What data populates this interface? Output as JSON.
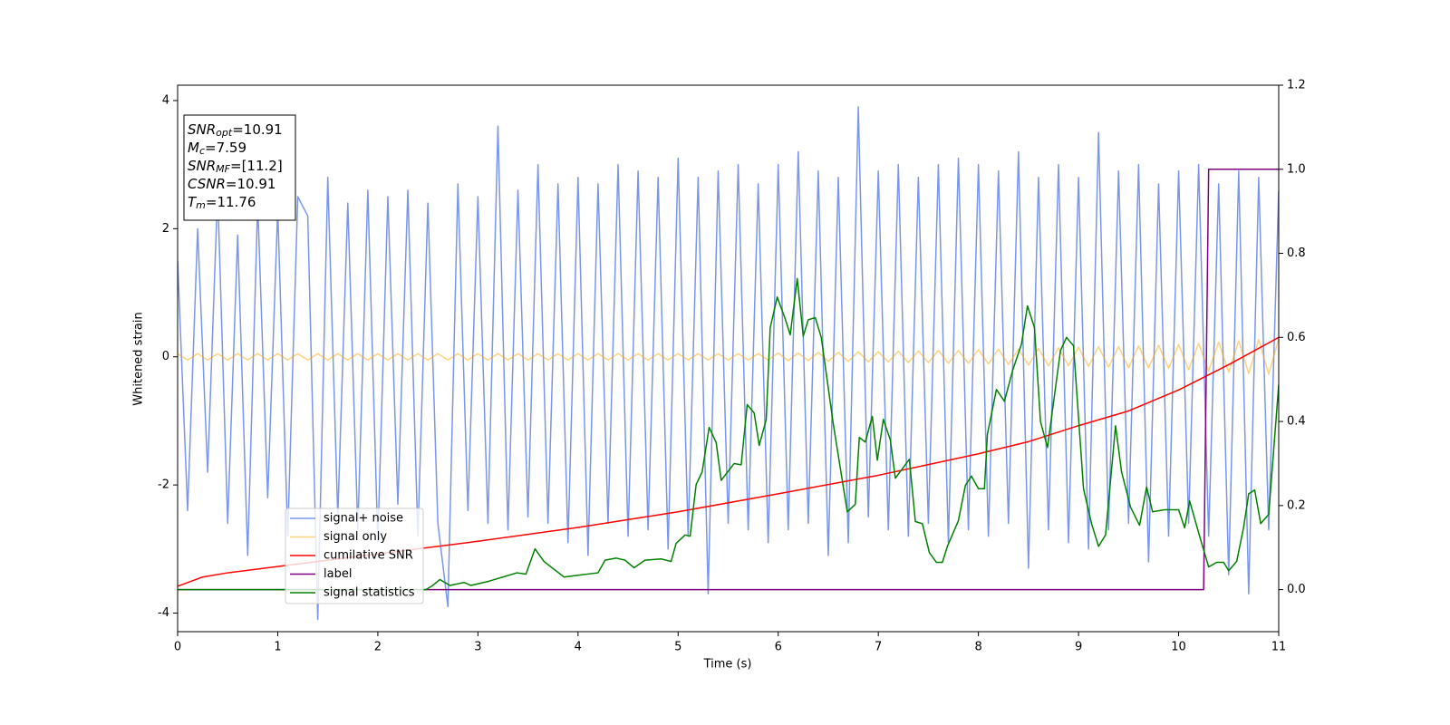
{
  "chart_data": {
    "type": "line",
    "xlabel": "Time (s)",
    "ylabel": "Whitened strain",
    "xlim": [
      0,
      11
    ],
    "xticks": [
      0,
      1,
      2,
      3,
      4,
      5,
      6,
      7,
      8,
      9,
      10,
      11
    ],
    "ylim": [
      -4.29,
      4.24
    ],
    "yticks": [
      -4,
      -2,
      0,
      2,
      4
    ],
    "y2lim": [
      -0.1,
      1.2
    ],
    "y2ticks": [
      {
        "value": 0,
        "label": "0.0"
      },
      0.2,
      0.4,
      0.6,
      0.8,
      {
        "value": 1,
        "label": "1.0"
      },
      1.2
    ],
    "legend": "lower left",
    "annotations": [
      {
        "text": "SNR",
        "sub": "opt",
        "rest": "=10.91"
      },
      {
        "text": "M",
        "sub": "c",
        "rest": "=7.59"
      },
      {
        "text": "SNR",
        "sub": "MF",
        "rest": "=[11.2]"
      },
      {
        "text": "CSNR",
        "sub": "",
        "rest": "=10.91"
      },
      {
        "text": "T",
        "sub": "m",
        "rest": "=11.76"
      }
    ],
    "x": [
      0,
      0.1,
      0.2,
      0.3,
      0.4,
      0.5,
      0.6,
      0.7,
      0.8,
      0.9,
      1,
      1.1,
      1.2,
      1.3,
      1.4,
      1.5,
      1.6,
      1.7,
      1.8,
      1.9,
      2,
      2.1,
      2.2,
      2.3,
      2.4,
      2.5,
      2.6,
      2.7,
      2.8,
      2.9,
      3,
      3.1,
      3.2,
      3.3,
      3.4,
      3.5,
      3.6,
      3.7,
      3.8,
      3.9,
      4,
      4.1,
      4.2,
      4.3,
      4.4,
      4.5,
      4.6,
      4.7,
      4.8,
      4.9,
      5,
      5.1,
      5.2,
      5.3,
      5.4,
      5.5,
      5.6,
      5.7,
      5.8,
      5.9,
      6,
      6.1,
      6.2,
      6.3,
      6.4,
      6.5,
      6.6,
      6.7,
      6.8,
      6.9,
      7,
      7.1,
      7.2,
      7.3,
      7.4,
      7.5,
      7.6,
      7.7,
      7.8,
      7.9,
      8,
      8.1,
      8.2,
      8.3,
      8.4,
      8.5,
      8.6,
      8.7,
      8.8,
      8.9,
      9,
      9.1,
      9.2,
      9.3,
      9.4,
      9.5,
      9.6,
      9.7,
      9.8,
      9.9,
      10,
      10.1,
      10.2,
      10.3,
      10.4,
      10.5,
      10.6,
      10.7,
      10.8,
      10.9,
      11
    ],
    "series": [
      {
        "name": "signal+ noise",
        "color": "#4169e1",
        "opacity": 0.7,
        "values": [
          1.5,
          -2.4,
          2.0,
          -1.8,
          2.6,
          -2.6,
          1.9,
          -3.1,
          2.4,
          -2.2,
          2.3,
          -2.8,
          2.5,
          2.2,
          -4.1,
          2.8,
          -2.5,
          2.4,
          -2.7,
          2.6,
          -2.9,
          2.5,
          -2.3,
          2.6,
          -2.8,
          2.4,
          -2.6,
          -3.9,
          2.7,
          -2.4,
          2.5,
          -2.6,
          3.6,
          -2.7,
          2.6,
          -2.5,
          3.0,
          -2.6,
          2.7,
          -2.9,
          2.8,
          -3.1,
          2.7,
          -2.6,
          3.0,
          -2.8,
          2.9,
          -2.7,
          2.8,
          -3.0,
          3.1,
          -2.8,
          2.8,
          -3.7,
          2.9,
          -2.6,
          3.0,
          -2.7,
          2.7,
          -2.9,
          3.0,
          -2.7,
          3.2,
          -2.6,
          2.9,
          -3.1,
          2.8,
          -2.9,
          3.9,
          -2.5,
          2.9,
          -2.7,
          3.0,
          -2.8,
          2.8,
          -2.6,
          3.0,
          -2.9,
          3.1,
          -2.7,
          3.0,
          -2.8,
          2.9,
          -2.6,
          3.2,
          -3.3,
          2.8,
          -2.7,
          3.0,
          -2.9,
          2.8,
          -3.0,
          3.5,
          -2.7,
          2.9,
          -2.6,
          3.0,
          -3.2,
          2.7,
          -2.8,
          2.9,
          -2.6,
          3.0,
          -2.8,
          2.7,
          -3.4,
          2.9,
          -3.7,
          2.8,
          -2.7,
          2.6
        ]
      },
      {
        "name": "signal only",
        "color": "#ffa500",
        "opacity": 0.5,
        "values": [
          0.05,
          -0.05,
          0.05,
          -0.05,
          0.05,
          -0.05,
          0.05,
          -0.05,
          0.05,
          -0.05,
          0.05,
          -0.05,
          0.05,
          -0.05,
          0.05,
          -0.05,
          0.05,
          -0.05,
          0.05,
          -0.05,
          0.05,
          -0.05,
          0.05,
          -0.05,
          0.05,
          -0.05,
          0.05,
          -0.05,
          0.05,
          -0.05,
          0.05,
          -0.05,
          0.05,
          -0.05,
          0.05,
          -0.05,
          0.05,
          -0.05,
          0.05,
          -0.05,
          0.05,
          -0.05,
          0.05,
          -0.05,
          0.05,
          -0.05,
          0.05,
          -0.05,
          0.05,
          -0.05,
          0.05,
          -0.05,
          0.05,
          -0.05,
          0.05,
          -0.05,
          0.05,
          -0.05,
          0.05,
          -0.05,
          0.06,
          -0.06,
          0.06,
          -0.06,
          0.07,
          -0.07,
          0.07,
          -0.07,
          0.08,
          -0.08,
          0.08,
          -0.08,
          0.09,
          -0.09,
          0.09,
          -0.09,
          0.1,
          -0.1,
          0.1,
          -0.1,
          0.11,
          -0.11,
          0.12,
          -0.12,
          0.12,
          -0.13,
          0.13,
          -0.14,
          0.14,
          -0.14,
          0.15,
          -0.15,
          0.16,
          -0.16,
          0.16,
          -0.17,
          0.17,
          -0.17,
          0.18,
          -0.18,
          0.19,
          -0.2,
          0.21,
          -0.22,
          0.23,
          -0.24,
          0.25,
          -0.26,
          0.27,
          -0.27,
          0.28
        ]
      },
      {
        "name": "cumilative SNR",
        "color": "#ff0000",
        "axis": "y2",
        "x": [
          0,
          0.25,
          0.5,
          1,
          2,
          3,
          4,
          5,
          6,
          7,
          8,
          8.5,
          9,
          9.5,
          10,
          10.5,
          11
        ],
        "values": [
          0.008,
          0.03,
          0.04,
          0.055,
          0.085,
          0.115,
          0.148,
          0.185,
          0.228,
          0.272,
          0.323,
          0.352,
          0.39,
          0.425,
          0.475,
          0.535,
          0.6
        ]
      },
      {
        "name": "label",
        "color": "#800080",
        "axis": "y2",
        "x": [
          0,
          10.25,
          10.3,
          11
        ],
        "values": [
          0,
          0,
          1,
          1
        ]
      },
      {
        "name": "signal statistics",
        "color": "#008000",
        "axis": "y2",
        "x": [
          0,
          2.48,
          2.55,
          2.62,
          2.72,
          2.86,
          2.93,
          3.11,
          3.39,
          3.48,
          3.57,
          3.66,
          3.86,
          4.2,
          4.27,
          4.38,
          4.47,
          4.56,
          4.67,
          4.83,
          4.93,
          4.98,
          5.07,
          5.12,
          5.18,
          5.24,
          5.31,
          5.38,
          5.43,
          5.56,
          5.63,
          5.69,
          5.76,
          5.81,
          5.88,
          5.92,
          5.99,
          6.07,
          6.12,
          6.19,
          6.25,
          6.3,
          6.37,
          6.43,
          6.55,
          6.69,
          6.77,
          6.81,
          6.87,
          6.94,
          6.99,
          7.05,
          7.12,
          7.17,
          7.31,
          7.37,
          7.44,
          7.51,
          7.58,
          7.64,
          7.69,
          7.8,
          7.87,
          7.93,
          8.0,
          8.06,
          8.09,
          8.18,
          8.26,
          8.34,
          8.43,
          8.49,
          8.56,
          8.62,
          8.69,
          8.82,
          8.88,
          8.95,
          9.05,
          9.13,
          9.2,
          9.27,
          9.37,
          9.43,
          9.52,
          9.61,
          9.68,
          9.74,
          9.86,
          10.0,
          10.06,
          10.11,
          10.21,
          10.3,
          10.38,
          10.45,
          10.5,
          10.58,
          10.65,
          10.7,
          10.76,
          10.82,
          10.9,
          11.0
        ],
        "values": [
          0,
          0,
          0.01,
          0.024,
          0.01,
          0.017,
          0.01,
          0.02,
          0.04,
          0.037,
          0.097,
          0.067,
          0.03,
          0.04,
          0.07,
          0.075,
          0.07,
          0.052,
          0.07,
          0.073,
          0.067,
          0.11,
          0.13,
          0.127,
          0.25,
          0.28,
          0.386,
          0.35,
          0.26,
          0.3,
          0.297,
          0.44,
          0.42,
          0.343,
          0.405,
          0.623,
          0.696,
          0.644,
          0.606,
          0.74,
          0.603,
          0.642,
          0.647,
          0.6,
          0.394,
          0.185,
          0.203,
          0.362,
          0.351,
          0.412,
          0.308,
          0.405,
          0.356,
          0.265,
          0.31,
          0.162,
          0.157,
          0.088,
          0.065,
          0.065,
          0.103,
          0.164,
          0.248,
          0.27,
          0.24,
          0.24,
          0.37,
          0.476,
          0.448,
          0.52,
          0.584,
          0.675,
          0.623,
          0.4,
          0.338,
          0.569,
          0.6,
          0.58,
          0.24,
          0.157,
          0.103,
          0.13,
          0.39,
          0.28,
          0.196,
          0.153,
          0.244,
          0.185,
          0.19,
          0.19,
          0.147,
          0.211,
          0.127,
          0.054,
          0.065,
          0.065,
          0.045,
          0.067,
          0.149,
          0.228,
          0.237,
          0.157,
          0.179,
          0.487
        ]
      }
    ]
  }
}
